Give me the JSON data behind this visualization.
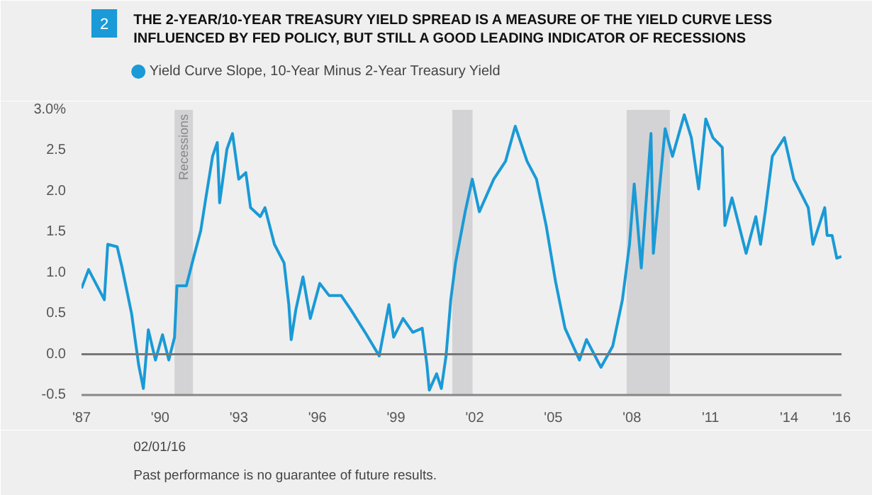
{
  "chart_data": {
    "type": "line",
    "title": "THE 2-YEAR/10-YEAR TREASURY YIELD SPREAD IS A MEASURE OF THE YIELD CURVE LESS INFLUENCED BY FED POLICY, BUT STILL A GOOD LEADING INDICATOR OF RECESSIONS",
    "x": [
      1987.0,
      1987.27,
      1987.87,
      1988.0,
      1988.36,
      1988.55,
      1988.91,
      1989.18,
      1989.36,
      1989.55,
      1989.82,
      1990.09,
      1990.33,
      1990.55,
      1990.64,
      1991.0,
      1991.27,
      1991.55,
      1991.73,
      1992.0,
      1992.18,
      1992.27,
      1992.55,
      1992.76,
      1993.0,
      1993.27,
      1993.45,
      1993.82,
      1994.0,
      1994.36,
      1994.73,
      1994.91,
      1995.0,
      1995.18,
      1995.45,
      1995.73,
      1996.09,
      1996.45,
      1996.91,
      1997.27,
      1997.82,
      1998.36,
      1998.73,
      1998.91,
      1999.27,
      1999.64,
      2000.0,
      2000.18,
      2000.27,
      2000.55,
      2000.73,
      2000.91,
      2001.09,
      2001.27,
      2001.64,
      2001.91,
      2002.18,
      2002.73,
      2003.18,
      2003.55,
      2004.0,
      2004.36,
      2004.73,
      2005.09,
      2005.45,
      2006.0,
      2006.27,
      2006.82,
      2007.27,
      2007.64,
      2007.91,
      2008.09,
      2008.36,
      2008.73,
      2008.82,
      2009.27,
      2009.55,
      2010.0,
      2010.27,
      2010.55,
      2010.82,
      2011.09,
      2011.45,
      2011.55,
      2011.82,
      2012.36,
      2012.73,
      2012.91,
      2013.09,
      2013.36,
      2013.82,
      2014.18,
      2014.73,
      2014.91,
      2015.36,
      2015.45,
      2015.64,
      2015.82,
      2016.0
    ],
    "series": [
      {
        "name": "Yield Curve Slope, 10-Year Minus 2-Year Treasury Yield",
        "color": "#1a9ad6",
        "values": [
          0.81,
          1.04,
          0.67,
          1.35,
          1.32,
          1.06,
          0.5,
          -0.13,
          -0.42,
          0.3,
          -0.07,
          0.24,
          -0.07,
          0.21,
          0.84,
          0.84,
          1.18,
          1.52,
          1.89,
          2.43,
          2.6,
          1.86,
          2.52,
          2.71,
          2.15,
          2.23,
          1.8,
          1.69,
          1.8,
          1.35,
          1.12,
          0.61,
          0.18,
          0.55,
          0.95,
          0.44,
          0.87,
          0.72,
          0.72,
          0.55,
          0.27,
          -0.02,
          0.61,
          0.21,
          0.44,
          0.27,
          0.32,
          -0.13,
          -0.44,
          -0.24,
          -0.42,
          -0.02,
          0.67,
          1.12,
          1.75,
          2.15,
          1.75,
          2.15,
          2.37,
          2.8,
          2.37,
          2.15,
          1.58,
          0.89,
          0.32,
          -0.07,
          0.18,
          -0.16,
          0.1,
          0.67,
          1.35,
          2.09,
          1.06,
          2.71,
          1.24,
          2.77,
          2.43,
          2.94,
          2.66,
          2.03,
          2.89,
          2.66,
          2.54,
          1.58,
          1.92,
          1.24,
          1.69,
          1.35,
          1.75,
          2.43,
          2.66,
          2.15,
          1.8,
          1.35,
          1.8,
          1.46,
          1.46,
          1.18,
          1.2
        ]
      }
    ],
    "xlim": [
      1987,
      2016
    ],
    "xticks": [
      {
        "value": 1987,
        "label": "'87"
      },
      {
        "value": 1990,
        "label": "'90"
      },
      {
        "value": 1993,
        "label": "'93"
      },
      {
        "value": 1996,
        "label": "'96"
      },
      {
        "value": 1999,
        "label": "'99"
      },
      {
        "value": 2002,
        "label": "'02"
      },
      {
        "value": 2005,
        "label": "'05"
      },
      {
        "value": 2008,
        "label": "'08"
      },
      {
        "value": 2011,
        "label": "'11"
      },
      {
        "value": 2014,
        "label": "'14"
      },
      {
        "value": 2016,
        "label": "'16"
      }
    ],
    "ylim": [
      -0.5,
      3.0
    ],
    "yticks": [
      -0.5,
      {
        "value": 0,
        "label": "0.0"
      },
      0.5,
      {
        "value": 1,
        "label": "1.0"
      },
      1.5,
      {
        "value": 2,
        "label": "2.0"
      },
      2.5,
      {
        "value": 3,
        "label": "3.0%"
      }
    ],
    "bands": [
      {
        "axis": "x",
        "from": 1990.55,
        "to": 1991.25,
        "label": "Recessions",
        "color": "#d3d3d5"
      },
      {
        "axis": "x",
        "from": 2001.15,
        "to": 2001.92,
        "color": "#d3d3d5"
      },
      {
        "axis": "x",
        "from": 2007.8,
        "to": 2009.45,
        "color": "#d3d3d5"
      }
    ],
    "ref_lines": [
      {
        "axis": "y",
        "value": 0,
        "color": "#777777"
      }
    ],
    "annotations": [
      "2",
      "02/01/16",
      "Past performance is no guarantee of future results."
    ],
    "legend": "top left",
    "grid": false,
    "marker": "none",
    "line_style": "solid"
  }
}
